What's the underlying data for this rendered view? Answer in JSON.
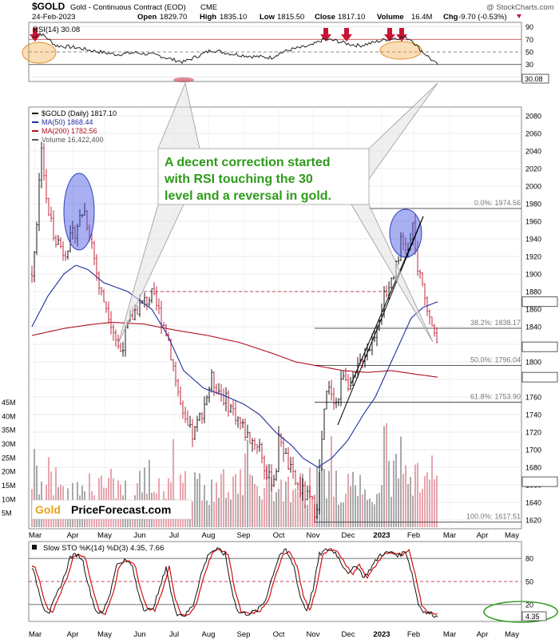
{
  "header": {
    "symbol": "$GOLD",
    "description": "Gold - Continuous Contract (EOD)",
    "exchange": "CME",
    "date": "24-Feb-2023",
    "open_label": "Open",
    "open": "1829.70",
    "high_label": "High",
    "high": "1835.10",
    "low_label": "Low",
    "low": "1815.50",
    "close_label": "Close",
    "close": "1817.10",
    "volume_label": "Volume",
    "volume": "16.4M",
    "chg_label": "Chg",
    "chg": "-9.70 (-0.53%)",
    "watermark": "@ StockCharts.com"
  },
  "rsi_panel": {
    "label": "RSI(14) 30.08",
    "current_value": "30.08",
    "y_ticks": [
      "90",
      "70",
      "50",
      "30",
      "10"
    ]
  },
  "price_panel": {
    "legend": [
      {
        "text": "$GOLD (Daily) 1817.10",
        "color": "#000000"
      },
      {
        "text": "MA(50) 1868.44",
        "color": "#1f2f9f"
      },
      {
        "text": "MA(200) 1782.56",
        "color": "#b01020"
      },
      {
        "text": "Volume 16,422,400",
        "color": "#555555"
      }
    ],
    "price_ticks": [
      "2080",
      "2060",
      "2040",
      "2020",
      "2000",
      "1980",
      "1960",
      "1940",
      "1920",
      "1900",
      "1880",
      "1860",
      "1840",
      "1820",
      "1800",
      "1780",
      "1760",
      "1740",
      "1720",
      "1700",
      "1680",
      "1660",
      "1640",
      "1620"
    ],
    "volume_ticks": [
      "45M",
      "40M",
      "35M",
      "30M",
      "25M",
      "20M",
      "15M",
      "10M",
      "5M"
    ],
    "ma50_tag": "1868.44",
    "close_tag": "1817.10",
    "ma200_tag": "1782.56",
    "volume_tag": "16422400",
    "fib_levels": [
      {
        "label": "0.0%: 1974.56",
        "value": 1974.56
      },
      {
        "label": "38.2%: 1838.17",
        "value": 1838.17
      },
      {
        "label": "50.0%: 1796.04",
        "value": 1796.04
      },
      {
        "label": "61.8%: 1753.90",
        "value": 1753.9
      },
      {
        "label": "100.0%: 1617.51",
        "value": 1617.51
      }
    ],
    "dashed_level": 1880,
    "annotation": [
      "A decent correction started",
      "with RSI touching the 30",
      "level and a reversal in gold."
    ],
    "logo_gold": "Gold",
    "logo_rest": "PriceForecast.com"
  },
  "sto_panel": {
    "label": "Slow STO %K(14) %D(3) 4.35, 7.66",
    "current_value": "4.35",
    "y_ticks": [
      "80",
      "50",
      "20"
    ]
  },
  "x_axis": [
    "Mar",
    "Apr",
    "May",
    "Jun",
    "Jul",
    "Aug",
    "Sep",
    "Oct",
    "Nov",
    "Dec",
    "2023",
    "Feb",
    "Mar",
    "Apr",
    "May"
  ],
  "colors": {
    "up_bar": "#000000",
    "down_bar": "#c0102a",
    "ma50": "#1f2f9f",
    "ma200": "#b01020",
    "annotation_box": "#2e9a1a",
    "highlight_circle": "#3f4fe0",
    "highlight_oval": "#f0a030",
    "arrow": "#c81535",
    "sto_fast": "#000000",
    "sto_slow": "#d21010"
  },
  "chart_data": [
    {
      "type": "line",
      "title": "RSI(14) 30.08",
      "ylim": [
        0,
        100
      ],
      "x": [
        "Mar",
        "Apr",
        "May",
        "Jun",
        "Jul",
        "Aug",
        "Sep",
        "Oct",
        "Nov",
        "Dec",
        "2023",
        "Feb",
        "Feb"
      ],
      "series": [
        {
          "name": "RSI(14)",
          "values": [
            75,
            58,
            45,
            52,
            35,
            55,
            42,
            55,
            72,
            66,
            72,
            68,
            30
          ]
        }
      ]
    },
    {
      "type": "line",
      "title": "$GOLD (Daily) 1817.10",
      "ylabel": "",
      "ylim": [
        1610,
        2090
      ],
      "x": [
        "Mar",
        "Apr",
        "May",
        "Jun",
        "Jul",
        "Aug",
        "Sep",
        "Oct",
        "Nov",
        "Dec",
        "2023",
        "Feb",
        "Feb"
      ],
      "series": [
        {
          "name": "$GOLD",
          "values": [
            1930,
            1940,
            1850,
            1845,
            1760,
            1780,
            1720,
            1700,
            1630,
            1800,
            1850,
            1940,
            1817
          ]
        },
        {
          "name": "MA(50)",
          "values": [
            1840,
            1900,
            1885,
            1850,
            1790,
            1770,
            1750,
            1710,
            1680,
            1720,
            1820,
            1870,
            1868
          ]
        },
        {
          "name": "MA(200)",
          "values": [
            1830,
            1840,
            1845,
            1843,
            1835,
            1825,
            1815,
            1800,
            1790,
            1785,
            1790,
            1785,
            1783
          ]
        }
      ]
    },
    {
      "type": "line",
      "title": "Slow STO %K(14) %D(3) 4.35, 7.66",
      "ylim": [
        0,
        100
      ],
      "x": [
        "Mar",
        "Apr",
        "May",
        "Jun",
        "Jul",
        "Aug",
        "Sep",
        "Oct",
        "Nov",
        "Dec",
        "2023",
        "Feb",
        "Feb"
      ],
      "series": [
        {
          "name": "%K",
          "values": [
            10,
            80,
            15,
            75,
            5,
            90,
            10,
            80,
            90,
            55,
            85,
            15,
            4.35
          ]
        },
        {
          "name": "%D",
          "values": [
            12,
            78,
            18,
            72,
            8,
            88,
            12,
            78,
            88,
            58,
            83,
            18,
            7.66
          ]
        }
      ]
    }
  ]
}
